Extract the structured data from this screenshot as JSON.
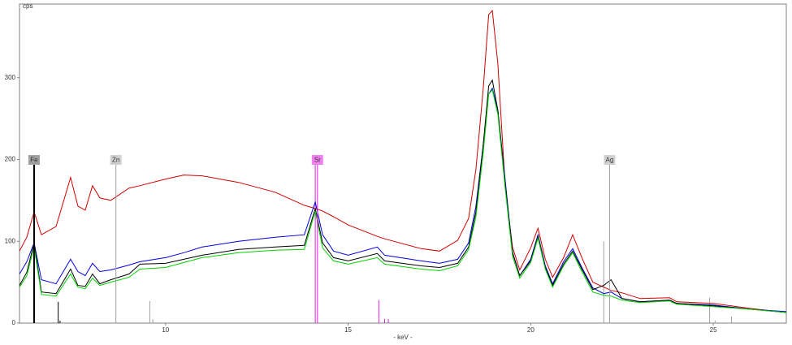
{
  "chart_data": {
    "type": "line",
    "y_label": "cps",
    "x_label": "- keV -",
    "xlim": [
      6,
      27
    ],
    "ylim": [
      0,
      390
    ],
    "xticks": [
      10,
      15,
      20,
      25
    ],
    "yticks": [
      0,
      100,
      200,
      300
    ],
    "x": [
      6.0,
      6.2,
      6.4,
      6.6,
      7.0,
      7.4,
      7.6,
      7.8,
      8.0,
      8.2,
      8.5,
      9.0,
      9.3,
      10.0,
      10.5,
      11.0,
      12.0,
      13.0,
      13.8,
      14.1,
      14.3,
      14.6,
      15.0,
      15.8,
      16.0,
      17.0,
      17.5,
      18.0,
      18.3,
      18.5,
      18.7,
      18.85,
      18.95,
      19.1,
      19.3,
      19.5,
      19.7,
      20.0,
      20.2,
      20.4,
      20.6,
      20.9,
      21.15,
      21.4,
      21.7,
      22.0,
      22.2,
      22.5,
      23.0,
      23.8,
      24.0,
      25.0,
      26.0,
      27.0
    ],
    "series": [
      {
        "color": "#d00000",
        "values": [
          88,
          105,
          136,
          108,
          118,
          178,
          143,
          138,
          168,
          153,
          150,
          165,
          168,
          176,
          181,
          180,
          172,
          160,
          144,
          140,
          137,
          130,
          120,
          106,
          103,
          91,
          88,
          101,
          128,
          188,
          287,
          377,
          382,
          317,
          167,
          93,
          65,
          92,
          116,
          78,
          56,
          80,
          108,
          80,
          50,
          44,
          40,
          37,
          30,
          31,
          26,
          24,
          18,
          13
        ]
      },
      {
        "color": "#0000e0",
        "values": [
          60,
          75,
          98,
          53,
          48,
          78,
          63,
          58,
          73,
          63,
          65,
          71,
          75,
          80,
          86,
          93,
          100,
          105,
          108,
          148,
          108,
          88,
          83,
          93,
          83,
          76,
          73,
          78,
          98,
          143,
          218,
          280,
          287,
          260,
          175,
          87,
          58,
          78,
          108,
          70,
          48,
          75,
          91,
          68,
          43,
          36,
          38,
          30,
          26,
          28,
          24,
          22,
          17,
          14
        ]
      },
      {
        "color": "#000000",
        "values": [
          46,
          62,
          98,
          38,
          36,
          66,
          46,
          45,
          60,
          48,
          53,
          60,
          72,
          73,
          78,
          83,
          90,
          93,
          95,
          140,
          98,
          80,
          76,
          85,
          76,
          70,
          68,
          73,
          93,
          136,
          218,
          290,
          297,
          260,
          170,
          86,
          58,
          76,
          106,
          68,
          46,
          72,
          88,
          66,
          41,
          46,
          53,
          30,
          26,
          28,
          24,
          21,
          17,
          13
        ]
      },
      {
        "color": "#00d000",
        "values": [
          44,
          58,
          93,
          35,
          33,
          60,
          44,
          42,
          55,
          46,
          50,
          56,
          66,
          68,
          74,
          80,
          86,
          89,
          90,
          137,
          92,
          76,
          72,
          80,
          72,
          66,
          64,
          70,
          90,
          130,
          208,
          280,
          285,
          255,
          165,
          82,
          55,
          74,
          104,
          66,
          44,
          70,
          86,
          63,
          38,
          34,
          33,
          28,
          25,
          27,
          23,
          20,
          17,
          13
        ]
      }
    ],
    "elements": [
      {
        "label": "Fe",
        "x": 6.4,
        "color": "#000000",
        "box": "#a0a0a0"
      },
      {
        "label": "Zn",
        "x": 8.64,
        "color": "#a0a0a0",
        "box": "#d0d0d0"
      },
      {
        "label": "Sr",
        "x": 14.16,
        "color": "#e020e0",
        "box": "#f080f0"
      },
      {
        "label": "Ag",
        "x": 22.16,
        "color": "#a0a0a0",
        "box": "#d0d0d0"
      }
    ],
    "element_lines": [
      {
        "x": 7.06,
        "height": 26,
        "color": "#000000"
      },
      {
        "x": 7.11,
        "height": 3,
        "color": "#000000"
      },
      {
        "x": 9.57,
        "height": 27,
        "color": "#a0a0a0"
      },
      {
        "x": 9.65,
        "height": 5,
        "color": "#a0a0a0"
      },
      {
        "x": 14.1,
        "height": 200,
        "color": "#e020e0"
      },
      {
        "x": 15.84,
        "height": 28,
        "color": "#e020e0"
      },
      {
        "x": 16.0,
        "height": 5,
        "color": "#e020e0"
      },
      {
        "x": 16.1,
        "height": 5,
        "color": "#e020e0"
      },
      {
        "x": 22.0,
        "height": 100,
        "color": "#a0a0a0"
      },
      {
        "x": 24.9,
        "height": 31,
        "color": "#a0a0a0"
      },
      {
        "x": 25.05,
        "height": 3,
        "color": "#a0a0a0"
      },
      {
        "x": 25.5,
        "height": 8,
        "color": "#a0a0a0"
      }
    ]
  }
}
